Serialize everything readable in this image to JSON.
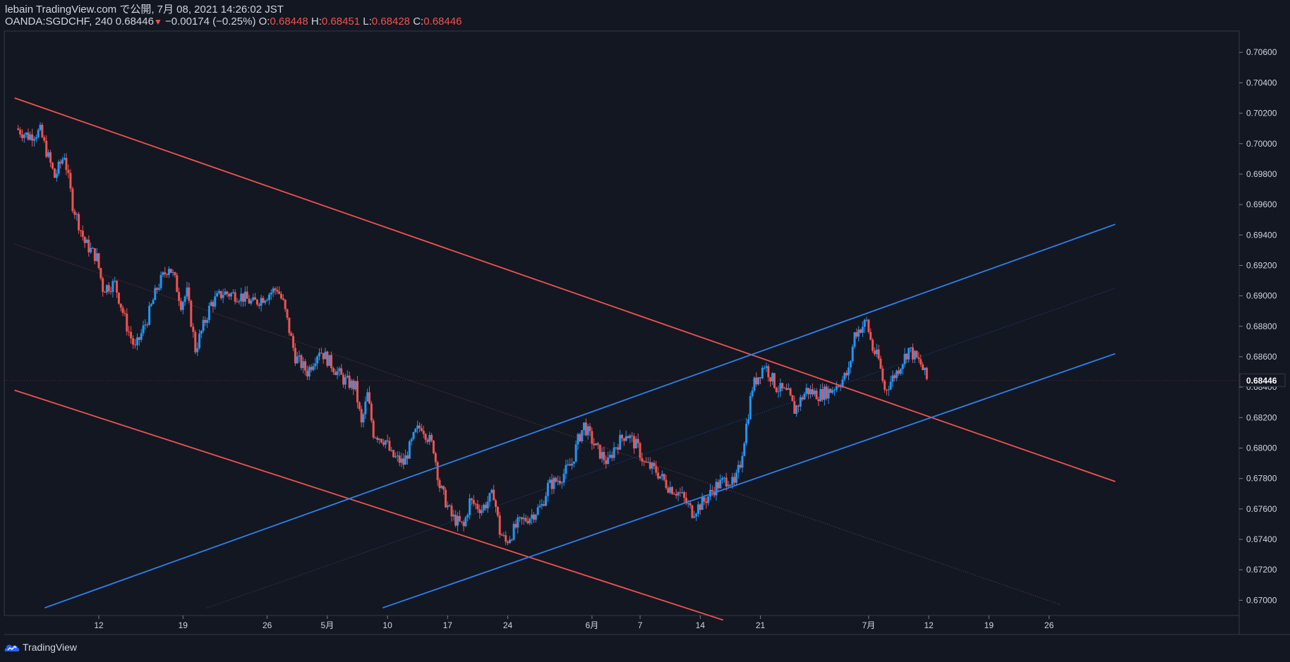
{
  "header": {
    "publisher": "lebain TradingView.com で公開, 7月 08, 2021 14:26:02 JST",
    "symbol": "OANDA:SGDCHF, 240",
    "last": "0.68446",
    "arrow": "▼",
    "change": "−0.00174 (−0.25%)",
    "o_label": "O:",
    "o_value": "0.68448",
    "h_label": "H:",
    "h_value": "0.68451",
    "l_label": "L:",
    "l_value": "0.68428",
    "c_label": "C:",
    "c_value": "0.68446"
  },
  "footer": {
    "brand": "TradingView",
    "logo_icon": "tradingview-logo-icon"
  },
  "colors": {
    "background": "#131722",
    "up": "#2196f3",
    "down": "#ef5350",
    "channel_down": "#ef5350",
    "channel_up": "#2f80ed",
    "axis_text": "#d1d4dc",
    "grid": "#2a2e39"
  },
  "chart_data": {
    "type": "candlestick",
    "symbol": "OANDA:SGDCHF",
    "timeframe": "240",
    "ylim": [
      0.669,
      0.7074
    ],
    "y_ticks": [
      "0.70600",
      "0.70400",
      "0.70200",
      "0.70000",
      "0.69800",
      "0.69600",
      "0.69400",
      "0.69200",
      "0.69000",
      "0.68800",
      "0.68600",
      "0.68400",
      "0.68200",
      "0.68000",
      "0.67800",
      "0.67600",
      "0.67400",
      "0.67200",
      "0.67000"
    ],
    "x_ticks": [
      {
        "label": "12",
        "day": 8
      },
      {
        "label": "19",
        "day": 15
      },
      {
        "label": "26",
        "day": 22
      },
      {
        "label": "5月",
        "day": 27
      },
      {
        "label": "10",
        "day": 32
      },
      {
        "label": "17",
        "day": 37
      },
      {
        "label": "24",
        "day": 42
      },
      {
        "label": "6月",
        "day": 49
      },
      {
        "label": "7",
        "day": 53
      },
      {
        "label": "14",
        "day": 58
      },
      {
        "label": "21",
        "day": 63
      },
      {
        "label": "7月",
        "day": 72
      },
      {
        "label": "12",
        "day": 77
      },
      {
        "label": "19",
        "day": 82
      },
      {
        "label": "26",
        "day": 87
      }
    ],
    "current_price": "0.68446",
    "closes": [
      [
        1.3,
        0.701
      ],
      [
        2.3,
        0.7005
      ],
      [
        3.3,
        0.7008
      ],
      [
        4.5,
        0.6978
      ],
      [
        5.3,
        0.6993
      ],
      [
        6.0,
        0.696
      ],
      [
        7.0,
        0.6935
      ],
      [
        8.0,
        0.6925
      ],
      [
        8.5,
        0.6905
      ],
      [
        9.5,
        0.6908
      ],
      [
        10.5,
        0.688
      ],
      [
        11.2,
        0.6865
      ],
      [
        12.2,
        0.6885
      ],
      [
        13.0,
        0.6905
      ],
      [
        14.0,
        0.692
      ],
      [
        14.5,
        0.691
      ],
      [
        15.0,
        0.6895
      ],
      [
        15.5,
        0.6902
      ],
      [
        16.2,
        0.6865
      ],
      [
        17.5,
        0.6895
      ],
      [
        18.5,
        0.6902
      ],
      [
        20.0,
        0.69
      ],
      [
        21.0,
        0.6895
      ],
      [
        22.0,
        0.69
      ],
      [
        23.0,
        0.6905
      ],
      [
        23.5,
        0.6895
      ],
      [
        24.5,
        0.686
      ],
      [
        25.5,
        0.685
      ],
      [
        26.5,
        0.6865
      ],
      [
        27.5,
        0.6855
      ],
      [
        28.5,
        0.6845
      ],
      [
        29.5,
        0.684
      ],
      [
        30.0,
        0.6815
      ],
      [
        30.5,
        0.6835
      ],
      [
        31.0,
        0.681
      ],
      [
        32.0,
        0.6805
      ],
      [
        32.5,
        0.6795
      ],
      [
        33.5,
        0.679
      ],
      [
        34.5,
        0.681
      ],
      [
        35.0,
        0.6815
      ],
      [
        36.0,
        0.68
      ],
      [
        36.5,
        0.6775
      ],
      [
        37.5,
        0.6755
      ],
      [
        38.5,
        0.6748
      ],
      [
        39.0,
        0.6765
      ],
      [
        40.0,
        0.676
      ],
      [
        41.0,
        0.677
      ],
      [
        41.5,
        0.6745
      ],
      [
        42.0,
        0.6738
      ],
      [
        43.0,
        0.675
      ],
      [
        44.0,
        0.6755
      ],
      [
        45.0,
        0.6762
      ],
      [
        45.5,
        0.6775
      ],
      [
        46.5,
        0.678
      ],
      [
        47.5,
        0.679
      ],
      [
        48.0,
        0.6805
      ],
      [
        48.5,
        0.6815
      ],
      [
        49.5,
        0.68
      ],
      [
        50.5,
        0.679
      ],
      [
        51.0,
        0.68
      ],
      [
        52.0,
        0.681
      ],
      [
        53.0,
        0.68
      ],
      [
        53.5,
        0.679
      ],
      [
        54.5,
        0.6785
      ],
      [
        55.5,
        0.6775
      ],
      [
        56.5,
        0.677
      ],
      [
        57.5,
        0.6758
      ],
      [
        58.5,
        0.6765
      ],
      [
        59.5,
        0.6775
      ],
      [
        60.5,
        0.678
      ],
      [
        61.0,
        0.6775
      ],
      [
        61.5,
        0.679
      ],
      [
        62.0,
        0.6815
      ],
      [
        62.5,
        0.684
      ],
      [
        63.5,
        0.6855
      ],
      [
        64.5,
        0.684
      ],
      [
        65.5,
        0.6835
      ],
      [
        66.0,
        0.6825
      ],
      [
        67.0,
        0.6838
      ],
      [
        68.0,
        0.6835
      ],
      [
        69.0,
        0.6838
      ],
      [
        70.0,
        0.6845
      ],
      [
        70.5,
        0.685
      ],
      [
        71.0,
        0.6875
      ],
      [
        72.0,
        0.6883
      ],
      [
        72.5,
        0.6865
      ],
      [
        73.0,
        0.6858
      ],
      [
        73.5,
        0.6838
      ],
      [
        74.5,
        0.685
      ],
      [
        75.5,
        0.6865
      ],
      [
        76.0,
        0.686
      ],
      [
        76.5,
        0.6855
      ],
      [
        77.0,
        0.6845
      ]
    ],
    "trendlines": [
      {
        "name": "descending-channel-upper",
        "color": "#ef5350",
        "points": [
          [
            1.0,
            0.703
          ],
          [
            92.5,
            0.6778
          ]
        ]
      },
      {
        "name": "descending-channel-lower",
        "color": "#ef5350",
        "points": [
          [
            1.0,
            0.6838
          ],
          [
            59.9,
            0.6687
          ]
        ]
      },
      {
        "name": "descending-channel-mid",
        "color": "#ef5350",
        "style": "dotted",
        "points": [
          [
            1.0,
            0.6934
          ],
          [
            88.0,
            0.6697
          ]
        ]
      },
      {
        "name": "ascending-channel-upper",
        "color": "#2f80ed",
        "points": [
          [
            3.5,
            0.6695
          ],
          [
            92.5,
            0.6947
          ]
        ]
      },
      {
        "name": "ascending-channel-lower",
        "color": "#2f80ed",
        "points": [
          [
            31.6,
            0.6695
          ],
          [
            92.5,
            0.6862
          ]
        ]
      },
      {
        "name": "ascending-channel-mid",
        "color": "#2f80ed",
        "style": "dotted",
        "points": [
          [
            17.0,
            0.6695
          ],
          [
            92.5,
            0.6905
          ]
        ]
      }
    ]
  }
}
